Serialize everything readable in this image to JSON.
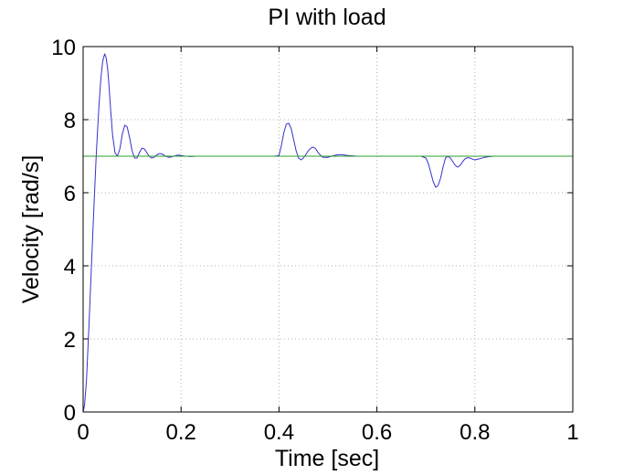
{
  "chart_data": {
    "type": "line",
    "title": "PI with load",
    "xlabel": "Time [sec]",
    "ylabel": "Velocity [rad/s]",
    "xlim": [
      0,
      1
    ],
    "ylim": [
      0,
      10
    ],
    "xticks": [
      0,
      0.2,
      0.4,
      0.6,
      0.8,
      1
    ],
    "xtick_labels": [
      "0",
      "0.2",
      "0.4",
      "0.6",
      "0.8",
      "1"
    ],
    "yticks": [
      0,
      2,
      4,
      6,
      8,
      10
    ],
    "ytick_labels": [
      "0",
      "2",
      "4",
      "6",
      "8",
      "10"
    ],
    "grid": true,
    "series": [
      {
        "color": "#3333cc",
        "x": [
          0,
          0.003,
          0.007,
          0.012,
          0.017,
          0.022,
          0.027,
          0.032,
          0.036,
          0.04,
          0.044,
          0.047,
          0.05,
          0.053,
          0.056,
          0.06,
          0.065,
          0.07,
          0.075,
          0.08,
          0.085,
          0.09,
          0.095,
          0.1,
          0.105,
          0.11,
          0.115,
          0.12,
          0.125,
          0.13,
          0.135,
          0.14,
          0.145,
          0.15,
          0.155,
          0.16,
          0.165,
          0.17,
          0.175,
          0.18,
          0.185,
          0.19,
          0.195,
          0.2,
          0.205,
          0.21,
          0.22,
          0.23,
          0.24,
          0.25,
          0.26,
          0.28,
          0.3,
          0.32,
          0.34,
          0.36,
          0.38,
          0.39,
          0.4,
          0.405,
          0.41,
          0.415,
          0.42,
          0.425,
          0.43,
          0.435,
          0.44,
          0.445,
          0.45,
          0.455,
          0.46,
          0.465,
          0.47,
          0.475,
          0.48,
          0.485,
          0.49,
          0.5,
          0.51,
          0.52,
          0.53,
          0.54,
          0.56,
          0.6,
          0.65,
          0.69,
          0.7,
          0.705,
          0.71,
          0.715,
          0.72,
          0.725,
          0.73,
          0.735,
          0.74,
          0.745,
          0.75,
          0.755,
          0.76,
          0.765,
          0.77,
          0.775,
          0.78,
          0.785,
          0.79,
          0.795,
          0.8,
          0.81,
          0.82,
          0.83,
          0.84,
          0.86,
          0.9
        ],
        "y": [
          0,
          0.2,
          0.9,
          2.4,
          4.0,
          5.6,
          7.1,
          8.3,
          9.1,
          9.6,
          9.8,
          9.7,
          9.4,
          8.9,
          8.3,
          7.6,
          7.1,
          7.0,
          7.2,
          7.6,
          7.85,
          7.8,
          7.5,
          7.15,
          6.95,
          6.95,
          7.1,
          7.22,
          7.2,
          7.1,
          7.0,
          6.95,
          6.97,
          7.03,
          7.07,
          7.07,
          7.03,
          6.99,
          6.97,
          6.98,
          7.0,
          7.02,
          7.03,
          7.02,
          7.01,
          7.0,
          6.99,
          7.0,
          7.0,
          7.0,
          7.0,
          7.0,
          7.0,
          7.0,
          7.0,
          7.0,
          7.0,
          7.0,
          7.02,
          7.3,
          7.65,
          7.88,
          7.9,
          7.75,
          7.45,
          7.15,
          6.95,
          6.9,
          6.95,
          7.05,
          7.15,
          7.22,
          7.25,
          7.2,
          7.1,
          7.02,
          6.97,
          6.97,
          7.01,
          7.04,
          7.04,
          7.02,
          7.0,
          7.0,
          7.0,
          7.0,
          6.95,
          6.8,
          6.55,
          6.3,
          6.15,
          6.2,
          6.4,
          6.7,
          6.95,
          7.0,
          6.95,
          6.85,
          6.75,
          6.7,
          6.75,
          6.85,
          6.93,
          6.96,
          6.95,
          6.92,
          6.9,
          6.93,
          6.97,
          6.99,
          7.0,
          7.0,
          7.0
        ]
      },
      {
        "color": "#2e9e2e",
        "x": [
          0,
          1
        ],
        "y": [
          7,
          7
        ]
      }
    ]
  }
}
